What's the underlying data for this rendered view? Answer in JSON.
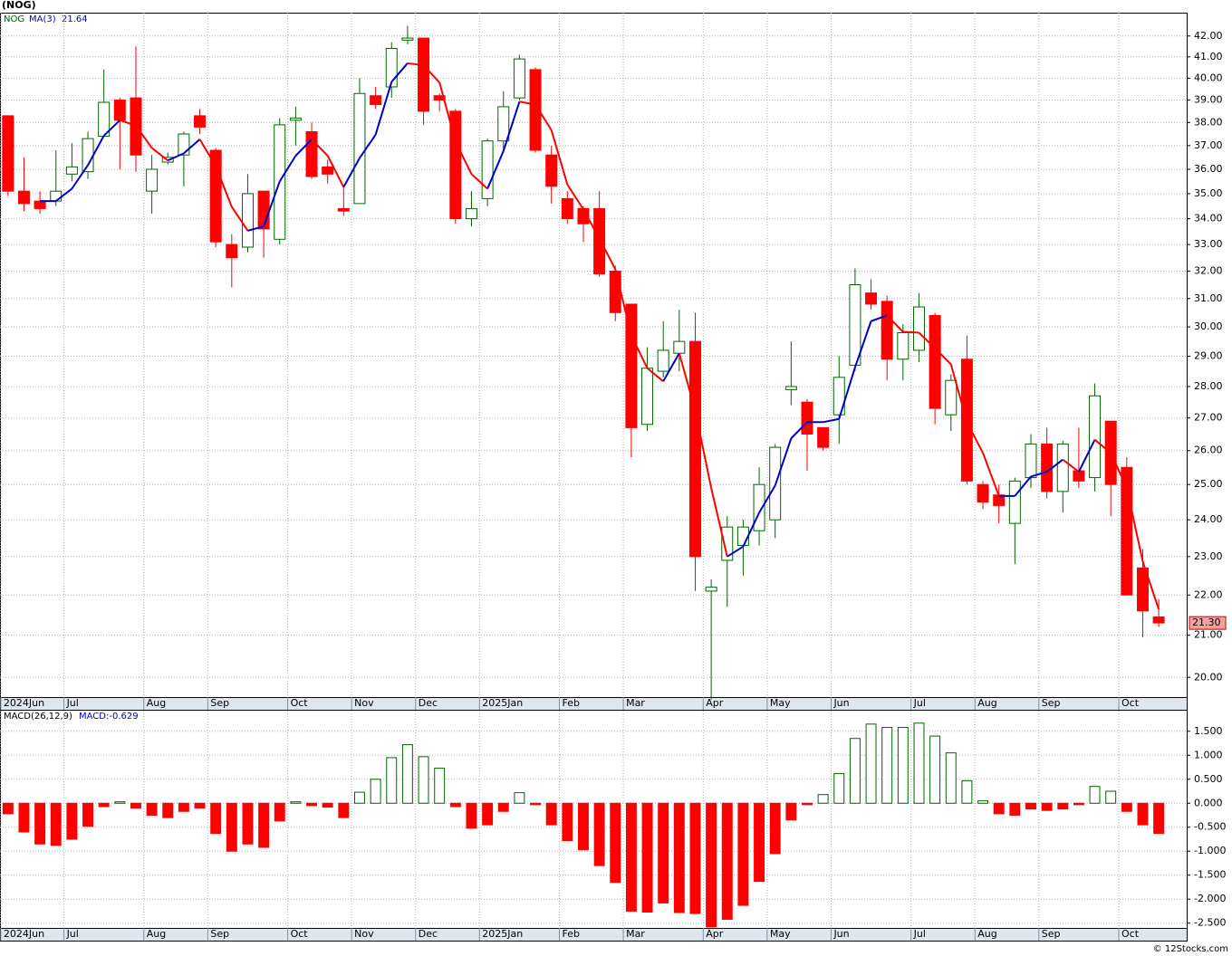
{
  "chart_data": [
    {
      "type": "candlestick",
      "title": "(NOG)",
      "symbol": "NOG",
      "log_scale": true,
      "grid": true,
      "up_color": "#006400",
      "down_color": "#ff0000",
      "open": [
        38.3,
        35.1,
        34.7,
        34.7,
        35.8,
        35.9,
        37.4,
        39.0,
        39.1,
        35.1,
        36.3,
        36.6,
        38.3,
        36.8,
        33.0,
        32.9,
        35.1,
        33.2,
        38.1,
        37.6,
        36.1,
        34.4,
        34.6,
        39.2,
        39.6,
        41.8,
        41.9,
        39.2,
        38.5,
        34.0,
        34.8,
        37.2,
        39.1,
        40.4,
        36.6,
        34.8,
        34.4,
        34.4,
        32.0,
        30.8,
        26.8,
        28.5,
        29.1,
        29.5,
        22.1,
        22.9,
        23.3,
        23.7,
        24.0,
        27.9,
        27.5,
        26.7,
        27.1,
        28.7,
        31.2,
        30.9,
        28.9,
        29.2,
        30.4,
        27.1,
        28.9,
        25.0,
        24.7,
        23.9,
        25.2,
        26.2,
        24.8,
        25.4,
        25.2,
        26.9,
        25.5,
        22.7,
        21.45
      ],
      "high": [
        38.3,
        36.5,
        35.1,
        36.8,
        37.1,
        37.6,
        40.4,
        39.1,
        41.5,
        36.6,
        36.7,
        37.6,
        38.6,
        36.9,
        33.4,
        35.8,
        35.1,
        38.2,
        38.7,
        38.0,
        36.4,
        35.3,
        40.0,
        39.6,
        41.7,
        42.5,
        41.9,
        39.3,
        38.6,
        35.1,
        37.3,
        39.4,
        41.1,
        40.5,
        37.0,
        35.1,
        34.5,
        35.1,
        32.2,
        30.8,
        29.3,
        30.2,
        30.6,
        30.5,
        22.4,
        24.1,
        24.0,
        25.5,
        26.2,
        29.5,
        27.6,
        26.7,
        29.0,
        32.1,
        31.7,
        31.1,
        30.1,
        31.2,
        30.5,
        28.4,
        29.7,
        25.1,
        25.0,
        25.2,
        26.5,
        26.7,
        26.3,
        26.7,
        28.1,
        26.9,
        25.8,
        23.2,
        21.9
      ],
      "low": [
        34.9,
        34.3,
        34.2,
        34.5,
        35.5,
        35.6,
        37.4,
        36.0,
        35.9,
        34.2,
        36.2,
        35.3,
        37.5,
        32.9,
        31.4,
        32.7,
        32.5,
        33.0,
        37.0,
        35.6,
        35.4,
        34.1,
        34.6,
        38.6,
        39.1,
        41.6,
        37.9,
        38.5,
        33.8,
        33.7,
        34.5,
        36.7,
        39.0,
        36.7,
        34.6,
        33.8,
        33.1,
        31.8,
        30.2,
        25.8,
        26.6,
        28.3,
        28.5,
        22.1,
        19.5,
        21.7,
        22.5,
        23.3,
        23.5,
        27.4,
        25.4,
        26.0,
        26.2,
        28.5,
        30.6,
        28.2,
        28.2,
        28.8,
        26.8,
        26.6,
        25.0,
        24.3,
        23.9,
        22.8,
        24.9,
        24.6,
        24.2,
        24.9,
        24.8,
        24.1,
        22.0,
        20.95,
        21.2
      ],
      "close": [
        35.1,
        34.6,
        34.4,
        35.1,
        36.1,
        37.3,
        38.9,
        38.1,
        36.6,
        36.0,
        36.5,
        37.5,
        37.8,
        33.1,
        32.5,
        35.0,
        33.6,
        37.9,
        38.2,
        35.7,
        35.8,
        34.3,
        39.3,
        38.8,
        41.4,
        41.9,
        38.5,
        39.0,
        34.0,
        34.4,
        37.2,
        38.7,
        40.9,
        36.8,
        35.3,
        34.0,
        33.8,
        31.9,
        30.5,
        26.7,
        28.6,
        29.2,
        29.5,
        23.0,
        22.2,
        23.8,
        23.8,
        25.0,
        26.1,
        28.0,
        26.5,
        26.1,
        28.3,
        31.5,
        30.8,
        28.9,
        29.8,
        30.7,
        27.3,
        28.2,
        25.1,
        24.5,
        24.4,
        25.1,
        26.2,
        24.8,
        26.2,
        25.1,
        27.7,
        25.0,
        22.0,
        21.6,
        21.3
      ],
      "last_price_label": "21.30",
      "ma": {
        "name": "MA(3)",
        "color_up": "#0000cc",
        "color_down": "#ff0000",
        "value_label": "21.64",
        "values": [
          null,
          null,
          34.7,
          34.7,
          35.2,
          36.17,
          37.43,
          38.1,
          37.87,
          36.9,
          36.37,
          36.67,
          37.27,
          36.13,
          34.47,
          33.53,
          33.7,
          35.5,
          36.57,
          37.27,
          36.57,
          35.27,
          36.47,
          37.47,
          39.83,
          40.7,
          40.6,
          39.8,
          37.17,
          35.8,
          35.2,
          36.77,
          38.93,
          38.8,
          37.67,
          35.37,
          34.37,
          33.23,
          32.07,
          29.7,
          28.6,
          28.17,
          29.1,
          27.23,
          24.9,
          23.0,
          23.27,
          24.2,
          24.97,
          26.37,
          26.87,
          26.87,
          26.97,
          28.63,
          30.2,
          30.4,
          29.83,
          29.8,
          29.27,
          28.73,
          26.87,
          25.93,
          24.67,
          24.67,
          25.23,
          25.37,
          25.73,
          25.37,
          26.33,
          25.93,
          24.9,
          22.87,
          21.64
        ]
      },
      "xlim": [
        -0.5,
        73.75
      ],
      "xticks": [
        {
          "value": -0.45,
          "label": "2024Jun"
        },
        {
          "value": 3.5,
          "label": "Jul"
        },
        {
          "value": 8.5,
          "label": "Aug"
        },
        {
          "value": 12.5,
          "label": "Sep"
        },
        {
          "value": 17.5,
          "label": "Oct"
        },
        {
          "value": 21.5,
          "label": "Nov"
        },
        {
          "value": 25.5,
          "label": "Dec"
        },
        {
          "value": 29.5,
          "label": "2025Jan"
        },
        {
          "value": 34.5,
          "label": "Feb"
        },
        {
          "value": 38.5,
          "label": "Mar"
        },
        {
          "value": 43.5,
          "label": "Apr"
        },
        {
          "value": 47.5,
          "label": "May"
        },
        {
          "value": 51.5,
          "label": "Jun"
        },
        {
          "value": 56.5,
          "label": "Jul"
        },
        {
          "value": 60.5,
          "label": "Aug"
        },
        {
          "value": 64.5,
          "label": "Sep"
        },
        {
          "value": 69.5,
          "label": "Oct"
        }
      ],
      "ylim": [
        19.55,
        43.15
      ],
      "yticks": [
        {
          "value": 20,
          "label": "20.00"
        },
        {
          "value": 21,
          "label": "21.00"
        },
        {
          "value": 22,
          "label": "22.00"
        },
        {
          "value": 23,
          "label": "23.00"
        },
        {
          "value": 24,
          "label": "24.00"
        },
        {
          "value": 25,
          "label": "25.00"
        },
        {
          "value": 26,
          "label": "26.00"
        },
        {
          "value": 27,
          "label": "27.00"
        },
        {
          "value": 28,
          "label": "28.00"
        },
        {
          "value": 29,
          "label": "29.00"
        },
        {
          "value": 30,
          "label": "30.00"
        },
        {
          "value": 31,
          "label": "31.00"
        },
        {
          "value": 32,
          "label": "32.00"
        },
        {
          "value": 33,
          "label": "33.00"
        },
        {
          "value": 34,
          "label": "34.00"
        },
        {
          "value": 35,
          "label": "35.00"
        },
        {
          "value": 36,
          "label": "36.00"
        },
        {
          "value": 37,
          "label": "37.00"
        },
        {
          "value": 38,
          "label": "38.00"
        },
        {
          "value": 39,
          "label": "39.00"
        },
        {
          "value": 40,
          "label": "40.00"
        },
        {
          "value": 41,
          "label": "41.00"
        },
        {
          "value": 42,
          "label": "42.00"
        }
      ]
    },
    {
      "type": "bar",
      "title": "MACD(26,12,9)",
      "value_label": "MACD:-0.629",
      "grid": true,
      "up_color": "#006400",
      "down_color": "#ff0000",
      "values": [
        -0.22,
        -0.6,
        -0.85,
        -0.88,
        -0.75,
        -0.48,
        -0.07,
        0.03,
        -0.1,
        -0.25,
        -0.3,
        -0.17,
        -0.1,
        -0.63,
        -1.0,
        -0.85,
        -0.92,
        -0.37,
        0.03,
        -0.05,
        -0.08,
        -0.3,
        0.23,
        0.5,
        0.95,
        1.22,
        0.97,
        0.73,
        -0.07,
        -0.52,
        -0.45,
        -0.17,
        0.22,
        -0.03,
        -0.45,
        -0.78,
        -0.97,
        -1.3,
        -1.65,
        -2.25,
        -2.27,
        -2.08,
        -2.28,
        -2.3,
        -2.58,
        -2.42,
        -2.13,
        -1.63,
        -1.05,
        -0.35,
        -0.03,
        0.18,
        0.62,
        1.35,
        1.65,
        1.58,
        1.58,
        1.67,
        1.4,
        1.05,
        0.47,
        0.05,
        -0.22,
        -0.25,
        -0.12,
        -0.15,
        -0.12,
        -0.03,
        0.35,
        0.25,
        -0.17,
        -0.45,
        -0.629
      ],
      "xlim": [
        -0.5,
        73.75
      ],
      "xticks": [
        {
          "value": -0.45,
          "label": "2024Jun"
        },
        {
          "value": 3.5,
          "label": "Jul"
        },
        {
          "value": 8.5,
          "label": "Aug"
        },
        {
          "value": 12.5,
          "label": "Sep"
        },
        {
          "value": 17.5,
          "label": "Oct"
        },
        {
          "value": 21.5,
          "label": "Nov"
        },
        {
          "value": 25.5,
          "label": "Dec"
        },
        {
          "value": 29.5,
          "label": "2025Jan"
        },
        {
          "value": 34.5,
          "label": "Feb"
        },
        {
          "value": 38.5,
          "label": "Mar"
        },
        {
          "value": 43.5,
          "label": "Apr"
        },
        {
          "value": 47.5,
          "label": "May"
        },
        {
          "value": 51.5,
          "label": "Jun"
        },
        {
          "value": 56.5,
          "label": "Jul"
        },
        {
          "value": 60.5,
          "label": "Aug"
        },
        {
          "value": 64.5,
          "label": "Sep"
        },
        {
          "value": 69.5,
          "label": "Oct"
        }
      ],
      "ylim": [
        -2.6,
        1.93
      ],
      "yticks": [
        {
          "value": -2.5,
          "label": "-2.500"
        },
        {
          "value": -2,
          "label": "-2.000"
        },
        {
          "value": -1.5,
          "label": "-1.500"
        },
        {
          "value": -1,
          "label": "-1.000"
        },
        {
          "value": -0.5,
          "label": "-0.500"
        },
        {
          "value": 0,
          "label": "0.000"
        },
        {
          "value": 0.5,
          "label": "0.500"
        },
        {
          "value": 1,
          "label": "1.000"
        },
        {
          "value": 1.5,
          "label": "1.500"
        }
      ]
    }
  ],
  "footer": "© 12Stocks.com"
}
